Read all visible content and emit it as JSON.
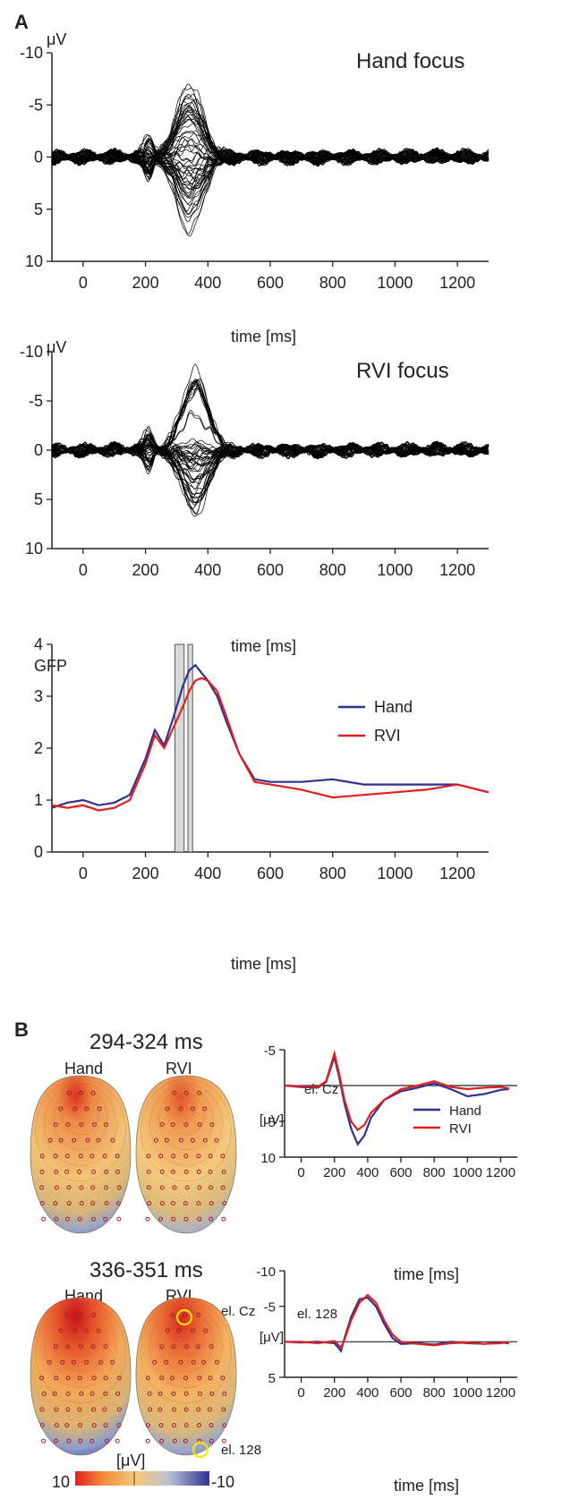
{
  "panel_a": {
    "letter": "A"
  },
  "panel_b": {
    "letter": "B"
  },
  "chart_data": [
    {
      "type": "line",
      "title": "Hand focus",
      "ylabel": "μV",
      "xlabel": "time [ms]",
      "x_ticks": [
        0,
        200,
        400,
        600,
        800,
        1000,
        1200
      ],
      "y_ticks": [
        -10,
        -5,
        0,
        5,
        10
      ],
      "xlim": [
        -100,
        1300
      ],
      "ylim": [
        -10,
        10
      ],
      "y_inverted": true,
      "description_values": {
        "n_traces": 60,
        "peak_ms": 340,
        "peak_min": -7,
        "peak_max": 8.5,
        "early_peak_ms": 210
      }
    },
    {
      "type": "line",
      "title": "RVI focus",
      "ylabel": "μV",
      "xlabel": "time [ms]",
      "x_ticks": [
        0,
        200,
        400,
        600,
        800,
        1000,
        1200
      ],
      "y_ticks": [
        -10,
        -5,
        0,
        5,
        10
      ],
      "xlim": [
        -100,
        1300
      ],
      "ylim": [
        -10,
        10
      ],
      "y_inverted": true,
      "description_values": {
        "n_traces": 60,
        "peak_ms": 360,
        "peak_min": -8,
        "peak_max": 6.5,
        "early_peak_ms": 210
      }
    },
    {
      "type": "line",
      "ylabel": "GFP",
      "xlabel": "time [ms]",
      "x_ticks": [
        0,
        200,
        400,
        600,
        800,
        1000,
        1200
      ],
      "y_ticks": [
        0,
        1,
        2,
        3,
        4
      ],
      "xlim": [
        -100,
        1300
      ],
      "ylim": [
        0,
        4
      ],
      "shaded_windows_ms": [
        [
          294,
          324
        ],
        [
          336,
          351
        ]
      ],
      "x": [
        -100,
        -50,
        0,
        50,
        100,
        150,
        200,
        230,
        260,
        290,
        320,
        340,
        360,
        380,
        400,
        430,
        460,
        500,
        550,
        600,
        700,
        800,
        900,
        1000,
        1100,
        1200,
        1300
      ],
      "series": [
        {
          "name": "Hand",
          "color": "#2e3192",
          "values": [
            0.85,
            0.95,
            1.0,
            0.9,
            0.95,
            1.1,
            1.8,
            2.35,
            2.05,
            2.6,
            3.2,
            3.5,
            3.6,
            3.45,
            3.3,
            3.0,
            2.5,
            1.9,
            1.4,
            1.35,
            1.35,
            1.4,
            1.3,
            1.3,
            1.3,
            1.3,
            1.15
          ]
        },
        {
          "name": "RVI",
          "color": "#e0201f",
          "values": [
            0.9,
            0.85,
            0.9,
            0.8,
            0.85,
            1.0,
            1.7,
            2.25,
            2.0,
            2.4,
            2.8,
            3.1,
            3.3,
            3.35,
            3.3,
            3.1,
            2.6,
            1.9,
            1.35,
            1.3,
            1.2,
            1.05,
            1.1,
            1.15,
            1.2,
            1.3,
            1.15
          ]
        }
      ],
      "legend": "right"
    },
    {
      "type": "line",
      "title": "el. Cz",
      "ylabel": "[μV]",
      "xlabel": "time [ms]",
      "x_ticks": [
        0,
        200,
        400,
        600,
        800,
        1000,
        1200
      ],
      "y_ticks": [
        -5,
        5,
        10
      ],
      "ylim": [
        -5,
        10
      ],
      "y_inverted": true,
      "x": [
        -100,
        0,
        100,
        150,
        200,
        230,
        260,
        300,
        340,
        380,
        420,
        500,
        600,
        700,
        800,
        900,
        1000,
        1100,
        1200,
        1250
      ],
      "series": [
        {
          "name": "Hand",
          "color": "#2e3192",
          "values": [
            0,
            0.2,
            0.3,
            -0.5,
            -4.0,
            -1.0,
            2.5,
            6.0,
            8.2,
            7.0,
            4.5,
            2.0,
            0.8,
            0.3,
            -0.3,
            0.5,
            1.5,
            1.2,
            0.6,
            0.5
          ]
        },
        {
          "name": "RVI",
          "color": "#e0201f",
          "values": [
            0,
            0.1,
            0.2,
            -0.6,
            -4.5,
            -1.5,
            2.0,
            5.0,
            6.2,
            5.5,
            3.8,
            2.0,
            0.5,
            0.0,
            -0.6,
            0.2,
            0.5,
            0.3,
            0.2,
            0.4
          ]
        }
      ],
      "legend": "right"
    },
    {
      "type": "line",
      "title": "el. 128",
      "ylabel": "[μV]",
      "xlabel": "time [ms]",
      "x_ticks": [
        0,
        200,
        400,
        600,
        800,
        1000,
        1200
      ],
      "y_ticks": [
        -10,
        -5,
        5
      ],
      "ylim": [
        -10,
        5
      ],
      "y_inverted": true,
      "x": [
        -100,
        0,
        100,
        200,
        240,
        260,
        300,
        350,
        400,
        450,
        500,
        550,
        600,
        700,
        800,
        900,
        1000,
        1100,
        1200,
        1250
      ],
      "series": [
        {
          "name": "Hand",
          "color": "#2e3192",
          "values": [
            0,
            0.1,
            0.0,
            0.2,
            1.3,
            -0.5,
            -3.5,
            -6.0,
            -6.2,
            -5.0,
            -2.5,
            -0.5,
            0.3,
            0.2,
            0.4,
            0.0,
            0.2,
            0.3,
            0.1,
            0.2
          ]
        },
        {
          "name": "RVI",
          "color": "#e0201f",
          "values": [
            0,
            0.0,
            0.2,
            -0.1,
            0.8,
            -0.3,
            -3.0,
            -5.5,
            -6.6,
            -5.5,
            -3.0,
            -1.0,
            0.0,
            0.3,
            0.5,
            0.2,
            0.1,
            0.3,
            0.2,
            0.0
          ]
        }
      ]
    }
  ],
  "topomaps": {
    "row1_label": "294-324 ms",
    "row2_label": "336-351 ms",
    "hand_label": "Hand",
    "rvi_label": "RVI",
    "cz_label": "el. Cz",
    "e128_label": "el. 128",
    "colorbar": {
      "unit": "[μV]",
      "max_label": "10",
      "min_label": "-10",
      "colors": [
        "#e0201f",
        "#f08a3a",
        "#f5c87a",
        "#b9c0d6",
        "#2e3192"
      ]
    }
  }
}
